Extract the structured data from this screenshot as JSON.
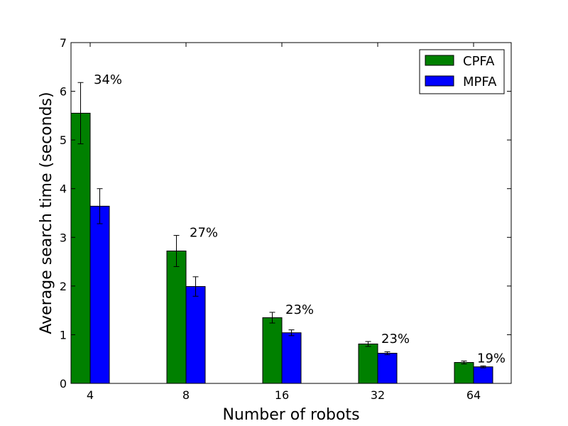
{
  "chart_data": {
    "type": "bar",
    "categories": [
      "4",
      "8",
      "16",
      "32",
      "64"
    ],
    "series": [
      {
        "name": "CPFA",
        "color": "#008000",
        "values": [
          5.55,
          2.72,
          1.35,
          0.81,
          0.43
        ],
        "errors": [
          0.63,
          0.32,
          0.11,
          0.05,
          0.03
        ]
      },
      {
        "name": "MPFA",
        "color": "#0000ff",
        "values": [
          3.64,
          1.99,
          1.04,
          0.62,
          0.34
        ],
        "errors": [
          0.36,
          0.2,
          0.06,
          0.03,
          0.02
        ]
      }
    ],
    "annotations": [
      "34%",
      "27%",
      "23%",
      "23%",
      "19%"
    ],
    "title": "",
    "xlabel": "Number of robots",
    "ylabel": "Average search time (seconds)",
    "ylim": [
      0,
      7
    ],
    "yticks": [
      "0",
      "1",
      "2",
      "3",
      "4",
      "5",
      "6",
      "7"
    ],
    "legend": "top-right",
    "grid": false
  }
}
